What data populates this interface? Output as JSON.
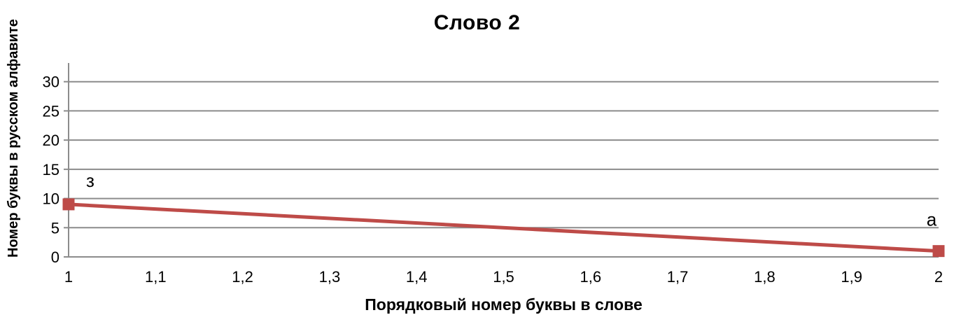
{
  "chart_data": {
    "type": "line",
    "title": "Слово 2",
    "xlabel": "Порядковый номер буквы в слове",
    "ylabel": "Номер буквы в русском алфавите",
    "points": [
      {
        "x": 1,
        "y": 9,
        "label": "з"
      },
      {
        "x": 2,
        "y": 1,
        "label": "а"
      }
    ],
    "x": [
      1,
      2
    ],
    "y": [
      9,
      1
    ],
    "point_labels": [
      "з",
      "а"
    ],
    "xlim": [
      1,
      2
    ],
    "ylim": [
      0,
      33.2
    ],
    "xticks": [
      1,
      1.1,
      1.2,
      1.3,
      1.4,
      1.5,
      1.6,
      1.7,
      1.8,
      1.9,
      2
    ],
    "xticklabels": [
      "1",
      "1,1",
      "1,2",
      "1,3",
      "1,4",
      "1,5",
      "1,6",
      "1,7",
      "1,8",
      "1,9",
      "2"
    ],
    "yticks": [
      0,
      5,
      10,
      15,
      20,
      25,
      30
    ],
    "yticklabels": [
      "0",
      "5",
      "10",
      "15",
      "20",
      "25",
      "30"
    ],
    "grid": true,
    "legend": "none",
    "colors": {
      "line": "#BE4B48",
      "marker": "#BE4B48",
      "grid": "#8C8C8C",
      "axis": "#8C8C8C",
      "text": "#000000"
    }
  }
}
